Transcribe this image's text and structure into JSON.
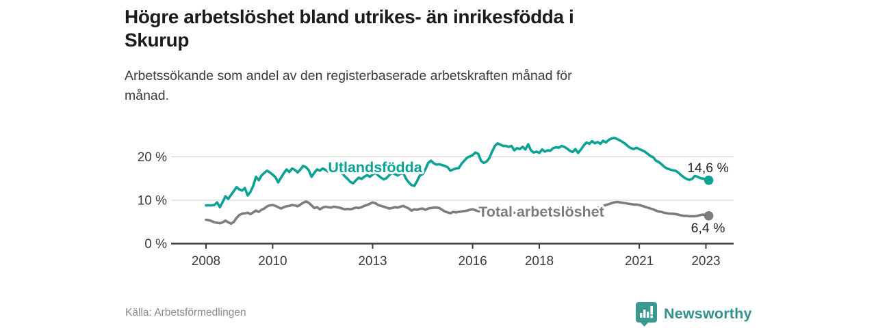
{
  "header": {
    "title": "Högre arbetslöshet bland utrikes- än inrikesfödda i Skurup",
    "title_lines": [
      "Högre arbetslöshet bland utrikes- än inrikesfödda i",
      "Skurup"
    ],
    "subtitle": "Arbetssökande som andel av den registerbaserade arbetskraften månad för månad.",
    "subtitle_lines": [
      "Arbetssökande som andel av den registerbaserade arbetskraften månad för",
      "månad."
    ]
  },
  "footer": {
    "source": "Källa: Arbetsförmedlingen",
    "brand": "Newsworthy"
  },
  "colors": {
    "teal": "#0ba295",
    "gray": "#7d7d7d",
    "axis": "#3d3d3d",
    "grid": "#d9d9d9",
    "tick_text": "#3a3a3a",
    "value_text": "#222222",
    "logo_teal": "#3a9a92"
  },
  "chart_data": {
    "type": "line",
    "title": "Högre arbetslöshet bland utrikes- än inrikesfödda i Skurup",
    "subtitle": "Arbetssökande som andel av den registerbaserade arbetskraften månad för månad.",
    "x_unit": "month",
    "x_start_year": 2008,
    "x_end": "2023-02",
    "x_ticks": [
      2008,
      2010,
      2013,
      2016,
      2018,
      2021,
      2023
    ],
    "y_ticks": [
      0,
      10,
      20
    ],
    "y_tick_suffix": " %",
    "ylim": [
      0,
      26
    ],
    "grid": true,
    "legend_position": "inline-labels",
    "series": [
      {
        "name": "Utlandsfödda",
        "color": "#0ba295",
        "end_label": "14,6 %",
        "end_value": 14.6,
        "values": [
          8.8,
          8.8,
          8.8,
          8.9,
          9.5,
          8.4,
          9.6,
          10.9,
          10.3,
          11.2,
          12.1,
          13.0,
          12.5,
          12.2,
          12.8,
          11.1,
          11.9,
          13.3,
          15.4,
          14.6,
          15.7,
          16.3,
          16.8,
          16.4,
          15.9,
          15.3,
          14.1,
          15.2,
          16.2,
          17.1,
          16.5,
          17.3,
          17.0,
          16.4,
          17.1,
          17.9,
          17.6,
          16.9,
          15.4,
          16.3,
          17.1,
          16.8,
          17.3,
          17.0,
          16.6,
          16.9,
          17.3,
          17.5,
          16.9,
          16.2,
          15.5,
          14.9,
          14.2,
          13.9,
          14.6,
          15.2,
          14.9,
          15.4,
          15.8,
          15.4,
          15.9,
          16.3,
          15.7,
          15.2,
          14.8,
          15.1,
          15.8,
          16.3,
          16.0,
          15.7,
          16.1,
          16.3,
          15.0,
          14.1,
          13.5,
          13.3,
          14.4,
          15.7,
          16.0,
          17.1,
          18.6,
          19.1,
          18.5,
          18.2,
          18.3,
          18.1,
          17.9,
          17.6,
          16.8,
          17.1,
          17.3,
          17.4,
          18.4,
          19.1,
          19.8,
          20.1,
          20.4,
          21.0,
          20.7,
          19.1,
          18.6,
          18.9,
          19.7,
          21.2,
          22.5,
          23.1,
          22.8,
          22.5,
          22.5,
          22.3,
          22.5,
          21.5,
          22.0,
          21.8,
          22.3,
          21.7,
          22.9,
          21.5,
          21.0,
          21.2,
          20.9,
          21.7,
          21.2,
          21.5,
          21.4,
          22.0,
          22.2,
          22.1,
          22.5,
          22.3,
          21.9,
          21.4,
          21.1,
          21.8,
          20.9,
          21.7,
          22.6,
          23.3,
          23.0,
          23.6,
          23.1,
          23.4,
          23.0,
          23.7,
          23.3,
          23.9,
          24.2,
          24.4,
          24.1,
          23.8,
          23.4,
          23.0,
          22.4,
          22.0,
          21.8,
          22.1,
          21.8,
          21.5,
          21.2,
          20.7,
          20.2,
          19.9,
          19.1,
          18.8,
          18.3,
          17.7,
          17.3,
          17.1,
          16.9,
          16.8,
          16.4,
          15.8,
          15.3,
          14.9,
          14.7,
          14.9,
          15.6,
          15.4,
          15.1,
          15.0,
          14.8,
          14.6
        ]
      },
      {
        "name": "Total arbetslöshet",
        "color": "#7d7d7d",
        "end_label": "6,4 %",
        "end_value": 6.4,
        "values": [
          5.5,
          5.4,
          5.2,
          4.9,
          4.8,
          4.7,
          4.9,
          5.3,
          4.9,
          4.6,
          5.0,
          5.9,
          6.6,
          6.9,
          7.0,
          7.1,
          6.8,
          7.2,
          7.6,
          7.3,
          7.8,
          8.1,
          8.6,
          8.8,
          8.9,
          8.7,
          8.4,
          8.1,
          8.4,
          8.6,
          8.7,
          8.9,
          8.8,
          8.6,
          9.0,
          9.4,
          9.7,
          9.4,
          8.8,
          8.2,
          8.4,
          7.9,
          8.3,
          8.5,
          8.4,
          8.3,
          8.5,
          8.4,
          8.3,
          8.1,
          7.9,
          8.0,
          7.9,
          8.1,
          8.3,
          8.2,
          8.4,
          8.7,
          8.9,
          9.2,
          9.5,
          9.3,
          8.9,
          8.7,
          8.5,
          8.3,
          8.1,
          8.2,
          8.4,
          8.3,
          8.5,
          8.7,
          8.4,
          8.1,
          7.6,
          7.9,
          7.8,
          8.0,
          8.1,
          7.8,
          8.1,
          8.2,
          8.3,
          8.3,
          8.2,
          7.8,
          7.4,
          7.2,
          7.0,
          7.3,
          7.2,
          7.3,
          7.4,
          7.5,
          7.6,
          7.8,
          7.9,
          7.7,
          7.5,
          7.4,
          7.3,
          7.2,
          7.4,
          7.6,
          7.5,
          7.4,
          7.5,
          7.6,
          7.5,
          7.4,
          7.2,
          7.1,
          7.0,
          6.9,
          7.0,
          7.1,
          7.2,
          7.1,
          7.0,
          7.0,
          6.9,
          6.8,
          6.7,
          6.8,
          6.9,
          7.0,
          7.1,
          7.0,
          7.1,
          7.2,
          7.3,
          7.4,
          7.5,
          7.4,
          7.3,
          7.4,
          7.5,
          7.6,
          7.8,
          7.9,
          8.0,
          8.2,
          8.4,
          8.7,
          8.9,
          9.1,
          9.3,
          9.5,
          9.6,
          9.5,
          9.4,
          9.3,
          9.2,
          9.1,
          9.0,
          9.0,
          8.9,
          8.7,
          8.5,
          8.3,
          8.1,
          7.9,
          7.6,
          7.4,
          7.3,
          7.1,
          7.0,
          6.9,
          6.9,
          6.8,
          6.7,
          6.5,
          6.4,
          6.4,
          6.3,
          6.3,
          6.3,
          6.4,
          6.6,
          6.7,
          6.5,
          6.4
        ]
      }
    ]
  }
}
